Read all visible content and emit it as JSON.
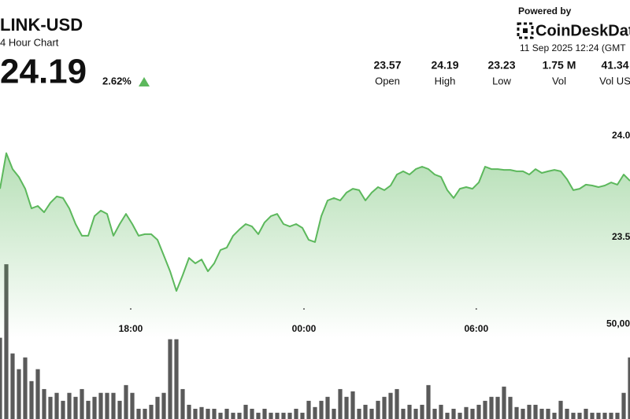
{
  "header": {
    "ticker": "LINK-USD",
    "subtitle": "4 Hour Chart",
    "price": "24.19",
    "change": "2.62%",
    "powered_by": "Powered by",
    "brand": "CoinDeskDat",
    "timestamp": "11 Sep 2025 12:24 (GMT",
    "stats": [
      {
        "value": "23.57",
        "label": "Open"
      },
      {
        "value": "24.19",
        "label": "High"
      },
      {
        "value": "23.23",
        "label": "Low"
      },
      {
        "value": "1.75 M",
        "label": "Vol"
      },
      {
        "value": "41.34",
        "label": "Vol US"
      }
    ]
  },
  "chart_data": {
    "type": "line",
    "xlim": [
      0,
      100
    ],
    "xticks": [
      {
        "value": 20.75,
        "label": "18:00"
      },
      {
        "value": 48.25,
        "label": "00:00"
      },
      {
        "value": 75.6,
        "label": "06:00"
      }
    ],
    "ylim": [
      23.5,
      24.0
    ],
    "yticks": [
      {
        "value": 24,
        "label": "24.0"
      },
      23.5
    ],
    "y2lim": [
      0,
      83000
    ],
    "y2ticks": [
      {
        "value": 50000,
        "label": "50,00"
      }
    ],
    "series": [
      {
        "color": "#5cb85c",
        "values": [
          23.74,
          23.915,
          23.837,
          23.798,
          23.74,
          23.643,
          23.655,
          23.624,
          23.671,
          23.702,
          23.694,
          23.643,
          23.566,
          23.508,
          23.508,
          23.605,
          23.632,
          23.616,
          23.508,
          23.566,
          23.616,
          23.566,
          23.508,
          23.516,
          23.516,
          23.488,
          23.411,
          23.333,
          23.236,
          23.314,
          23.399,
          23.372,
          23.391,
          23.333,
          23.372,
          23.438,
          23.45,
          23.508,
          23.539,
          23.566,
          23.554,
          23.516,
          23.574,
          23.605,
          23.616,
          23.566,
          23.554,
          23.566,
          23.547,
          23.488,
          23.477,
          23.605,
          23.682,
          23.694,
          23.682,
          23.721,
          23.74,
          23.733,
          23.682,
          23.721,
          23.748,
          23.733,
          23.756,
          23.81,
          23.826,
          23.81,
          23.837,
          23.849,
          23.837,
          23.81,
          23.798,
          23.733,
          23.694,
          23.74,
          23.748,
          23.74,
          23.771,
          23.849,
          23.837,
          23.837,
          23.833,
          23.833,
          23.826,
          23.826,
          23.81,
          23.837,
          23.818,
          23.826,
          23.833,
          23.826,
          23.787,
          23.733,
          23.74,
          23.76,
          23.756,
          23.748,
          23.756,
          23.771,
          23.76,
          23.81,
          23.779
        ]
      },
      {
        "type": "bar",
        "axis": "y2",
        "color": "#5a5a5a",
        "values": [
          42900,
          81700,
          34600,
          26300,
          32500,
          20000,
          26300,
          15800,
          11700,
          13800,
          9600,
          13800,
          11700,
          15800,
          9600,
          11700,
          13800,
          13800,
          13800,
          9600,
          17900,
          13800,
          5400,
          5400,
          7500,
          11700,
          13800,
          42100,
          42100,
          15800,
          7500,
          5400,
          6300,
          5400,
          5400,
          3300,
          5400,
          3300,
          3300,
          7500,
          5400,
          3300,
          5400,
          3300,
          3300,
          3300,
          3300,
          5400,
          3300,
          9600,
          6300,
          9600,
          11700,
          5400,
          15800,
          11700,
          14600,
          5400,
          7500,
          5400,
          9600,
          11700,
          13800,
          15800,
          5400,
          7500,
          5400,
          7500,
          17900,
          5400,
          7500,
          3300,
          5400,
          3300,
          6300,
          5400,
          7500,
          9600,
          11700,
          11700,
          17100,
          11700,
          6300,
          5400,
          7500,
          7500,
          5400,
          5400,
          3300,
          9600,
          5400,
          3300,
          3300,
          5400,
          3300,
          3300,
          3300,
          3300,
          3300,
          13800,
          32500
        ]
      }
    ]
  }
}
